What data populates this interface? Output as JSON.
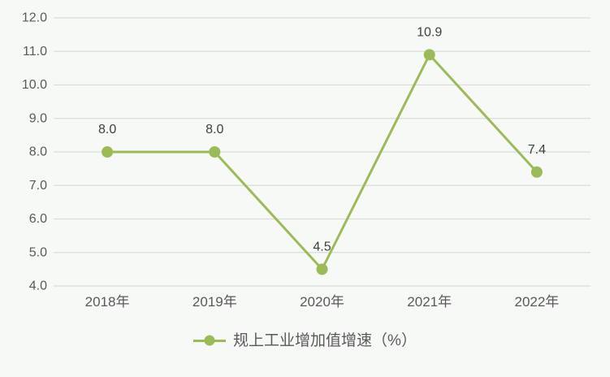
{
  "chart_data": {
    "type": "line",
    "title": "",
    "xlabel": "",
    "ylabel": "",
    "categories": [
      "2018年",
      "2019年",
      "2020年",
      "2021年",
      "2022年"
    ],
    "series": [
      {
        "name": "规上工业增加值增速（%）",
        "values": [
          8.0,
          8.0,
          4.5,
          10.9,
          7.4
        ]
      }
    ],
    "data_labels": [
      "8.0",
      "8.0",
      "4.5",
      "10.9",
      "7.4"
    ],
    "y_ticks": [
      "12.0",
      "11.0",
      "10.0",
      "9.0",
      "8.0",
      "7.0",
      "6.0",
      "5.0",
      "4.0"
    ],
    "ylim": [
      4,
      12
    ],
    "grid": "horizontal-only",
    "legend_position": "bottom-center",
    "legend_label": "规上工业增加值增速（%）",
    "colors": {
      "series": "#9BBB59",
      "gridline": "#DBDBDB",
      "tick_label": "#595959",
      "data_label": "#3F3F3F",
      "background": "#F7F9F7"
    }
  }
}
